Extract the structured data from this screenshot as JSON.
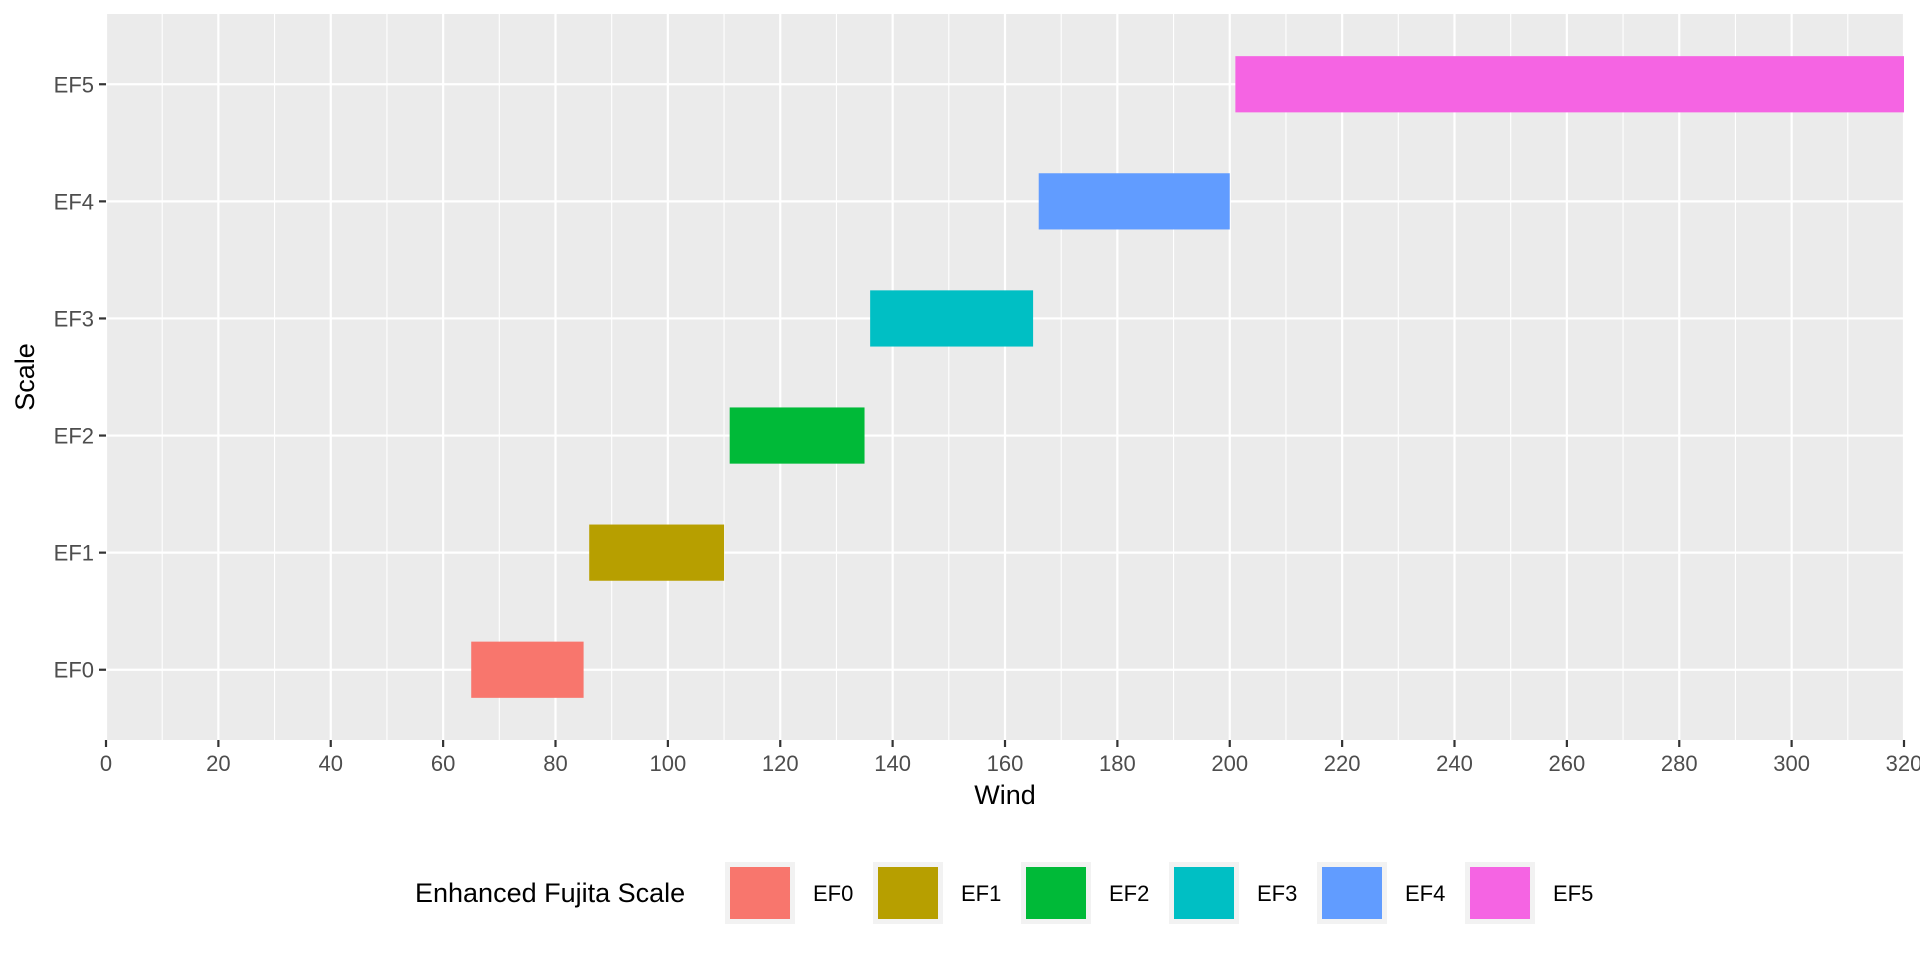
{
  "chart_data": {
    "type": "bar",
    "orientation": "horizontal-range",
    "categories": [
      "EF0",
      "EF1",
      "EF2",
      "EF3",
      "EF4",
      "EF5"
    ],
    "series": [
      {
        "category": "EF0",
        "start": 65,
        "end": 85,
        "color": "#F8766D"
      },
      {
        "category": "EF1",
        "start": 86,
        "end": 110,
        "color": "#B79F00"
      },
      {
        "category": "EF2",
        "start": 111,
        "end": 135,
        "color": "#00BA38"
      },
      {
        "category": "EF3",
        "start": 136,
        "end": 165,
        "color": "#00BFC4"
      },
      {
        "category": "EF4",
        "start": 166,
        "end": 200,
        "color": "#619CFF"
      },
      {
        "category": "EF5",
        "start": 201,
        "end": 320,
        "color": "#F564E3"
      }
    ],
    "xlabel": "Wind",
    "ylabel": "Scale",
    "xlim": [
      0,
      320
    ],
    "x_ticks": [
      0,
      20,
      40,
      60,
      80,
      100,
      120,
      140,
      160,
      180,
      200,
      220,
      240,
      260,
      280,
      300,
      320
    ],
    "grid": true,
    "legend": {
      "title": "Enhanced Fujita Scale",
      "position": "bottom",
      "entries": [
        "EF0",
        "EF1",
        "EF2",
        "EF3",
        "EF4",
        "EF5"
      ]
    },
    "colors": {
      "panel_background": "#EBEBEB",
      "grid": "#FFFFFF",
      "tick_text": "#4D4D4D",
      "tick_mark": "#333333"
    }
  }
}
